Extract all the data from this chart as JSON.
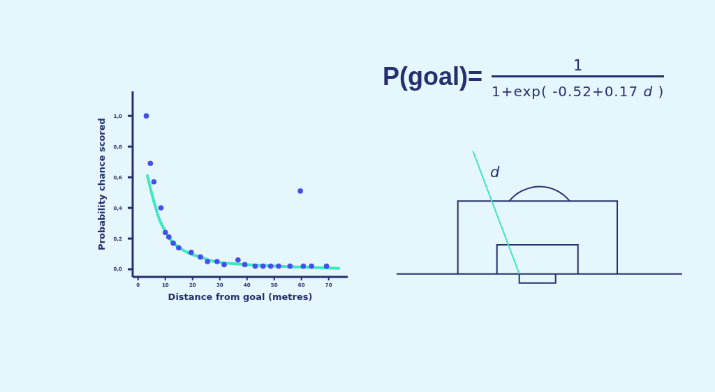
{
  "chart_data": {
    "type": "scatter",
    "xlabel": "Distance from goal (metres)",
    "ylabel": "Probability chance scored",
    "xlim": [
      -2,
      77
    ],
    "ylim": [
      -0.05,
      1.16
    ],
    "xticks": [
      0,
      10,
      20,
      30,
      40,
      50,
      60,
      70
    ],
    "yticks": [
      {
        "value": 0,
        "label": "0,0"
      },
      {
        "value": 0.2,
        "label": "0,2"
      },
      {
        "value": 0.4,
        "label": "0,4"
      },
      {
        "value": 0.6,
        "label": "0,6"
      },
      {
        "value": 0.8,
        "label": "0,8"
      },
      {
        "value": 1,
        "label": "1,0"
      }
    ],
    "series": [
      {
        "color": "#4450ee",
        "marker": "circle",
        "x": [
          3,
          4.5,
          5.8,
          8.4,
          10,
          11.3,
          12.9,
          14.9,
          19.5,
          22.9,
          25.5,
          29,
          31.6,
          36.7,
          39.2,
          43,
          45.9,
          48.7,
          51.6,
          55.8,
          59.6,
          60.7,
          63.7,
          69.2
        ],
        "values": [
          1.0,
          0.69,
          0.57,
          0.4,
          0.24,
          0.21,
          0.17,
          0.14,
          0.11,
          0.08,
          0.05,
          0.05,
          0.03,
          0.06,
          0.03,
          0.02,
          0.02,
          0.02,
          0.02,
          0.02,
          0.51,
          0.02,
          0.02,
          0.02
        ]
      },
      {
        "type": "line",
        "color": "#3ee8c0",
        "x": [
          3.4,
          4.5,
          5.5,
          6.5,
          7.5,
          9,
          10.5,
          12,
          14,
          16,
          18,
          20,
          23,
          26,
          30,
          35,
          40,
          45,
          50,
          55,
          60,
          65,
          70,
          73.7
        ],
        "values": [
          0.61,
          0.53,
          0.46,
          0.4,
          0.34,
          0.28,
          0.23,
          0.19,
          0.155,
          0.13,
          0.11,
          0.095,
          0.08,
          0.06,
          0.045,
          0.036,
          0.03,
          0.025,
          0.021,
          0.017,
          0.014,
          0.011,
          0.008,
          0.006
        ]
      }
    ],
    "annotations": [
      "P(goal)=",
      "1",
      "1+exp( -0.52+0.17",
      "d",
      ")",
      "d"
    ]
  }
}
